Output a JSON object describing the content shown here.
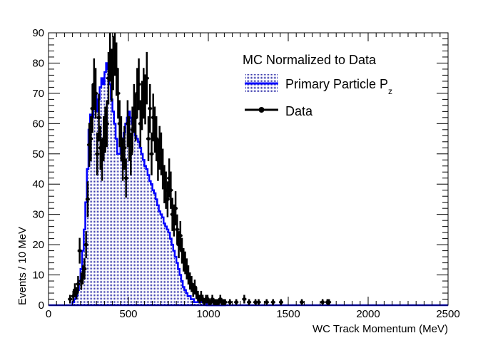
{
  "chart_data": {
    "type": "histogram",
    "title": "",
    "xlabel": "WC Track Momentum (MeV)",
    "ylabel": "Events / 10 MeV",
    "xlim": [
      0,
      2500
    ],
    "ylim": [
      0,
      90
    ],
    "x_ticks": [
      0,
      500,
      1000,
      1500,
      2000,
      2500
    ],
    "y_ticks": [
      0,
      10,
      20,
      30,
      40,
      50,
      60,
      70,
      80,
      90
    ],
    "grid": false,
    "legend_position": "top-right",
    "legend_title": "MC Normalized to Data",
    "bin_width": 10,
    "series": [
      {
        "name": "Primary Particle P",
        "name_subscript": "z",
        "kind": "mc-histogram",
        "line_color": "#0000ff",
        "fill_color": "#3333aa",
        "x": [
          150,
          160,
          170,
          180,
          190,
          200,
          210,
          220,
          230,
          240,
          250,
          260,
          270,
          280,
          290,
          300,
          310,
          320,
          330,
          340,
          350,
          360,
          370,
          380,
          390,
          400,
          410,
          420,
          430,
          440,
          450,
          460,
          470,
          480,
          490,
          500,
          510,
          520,
          530,
          540,
          550,
          560,
          570,
          580,
          590,
          600,
          610,
          620,
          630,
          640,
          650,
          660,
          670,
          680,
          690,
          700,
          710,
          720,
          730,
          740,
          750,
          760,
          770,
          780,
          790,
          800,
          810,
          820,
          830,
          840,
          850,
          860,
          870,
          880,
          890,
          900,
          910,
          920,
          930,
          940,
          950,
          960,
          970,
          980,
          990,
          1000,
          1010,
          1020,
          1030,
          1040,
          1050,
          1060,
          1070,
          1080,
          1090,
          1100
        ],
        "y": [
          1,
          2,
          3,
          5,
          8,
          12,
          18,
          25,
          34,
          45,
          58,
          63,
          62,
          66,
          70,
          64,
          68,
          72,
          75,
          73,
          77,
          80,
          78,
          73,
          68,
          64,
          60,
          55,
          50,
          50,
          52,
          54,
          57,
          60,
          62,
          64,
          62,
          60,
          58,
          56,
          55,
          54,
          52,
          50,
          48,
          46,
          45,
          43,
          41,
          40,
          38,
          37,
          35,
          33,
          31,
          30,
          29,
          27,
          26,
          25,
          24,
          22,
          20,
          18,
          16,
          14,
          12,
          10,
          8,
          6,
          5,
          4,
          3,
          3,
          2,
          2,
          1,
          1,
          1,
          1,
          1,
          1,
          1,
          1,
          0,
          0,
          0,
          0,
          0,
          0,
          0,
          0,
          0,
          0,
          0,
          0
        ]
      },
      {
        "name": "Data",
        "kind": "points-with-errors",
        "color": "#000000",
        "x": [
          130,
          150,
          160,
          170,
          180,
          190,
          200,
          210,
          220,
          230,
          240,
          250,
          260,
          270,
          280,
          290,
          300,
          310,
          320,
          330,
          340,
          350,
          360,
          370,
          380,
          390,
          400,
          410,
          420,
          430,
          440,
          450,
          460,
          470,
          480,
          490,
          500,
          510,
          520,
          530,
          540,
          550,
          560,
          570,
          580,
          590,
          600,
          610,
          620,
          630,
          640,
          650,
          660,
          670,
          680,
          690,
          700,
          710,
          720,
          730,
          740,
          750,
          760,
          770,
          780,
          790,
          800,
          810,
          820,
          830,
          840,
          850,
          860,
          870,
          880,
          890,
          900,
          910,
          920,
          930,
          940,
          950,
          960,
          970,
          980,
          990,
          1000,
          1010,
          1020,
          1030,
          1040,
          1050,
          1060,
          1070,
          1080,
          1090,
          1100,
          1130,
          1170,
          1220,
          1250,
          1290,
          1310,
          1360,
          1400,
          1450,
          1580,
          1710,
          1740,
          1750
        ],
        "y": [
          2,
          3,
          5,
          4,
          7,
          18,
          8,
          10,
          12,
          20,
          35,
          53,
          55,
          65,
          73,
          70,
          50,
          62,
          52,
          48,
          55,
          58,
          60,
          75,
          83,
          76,
          80,
          85,
          78,
          70,
          60,
          55,
          48,
          52,
          42,
          60,
          55,
          50,
          58,
          65,
          62,
          70,
          73,
          60,
          66,
          70,
          68,
          75,
          55,
          65,
          50,
          62,
          58,
          55,
          48,
          52,
          50,
          45,
          40,
          38,
          35,
          42,
          38,
          30,
          28,
          32,
          25,
          20,
          23,
          18,
          15,
          14,
          12,
          10,
          8,
          7,
          5,
          6,
          4,
          3,
          2,
          3,
          2,
          1,
          2,
          2,
          1,
          1,
          2,
          1,
          1,
          1,
          1,
          2,
          1,
          1,
          1,
          1,
          1,
          2,
          1,
          1,
          1,
          1,
          1,
          1,
          1,
          1,
          1,
          1
        ]
      }
    ]
  }
}
